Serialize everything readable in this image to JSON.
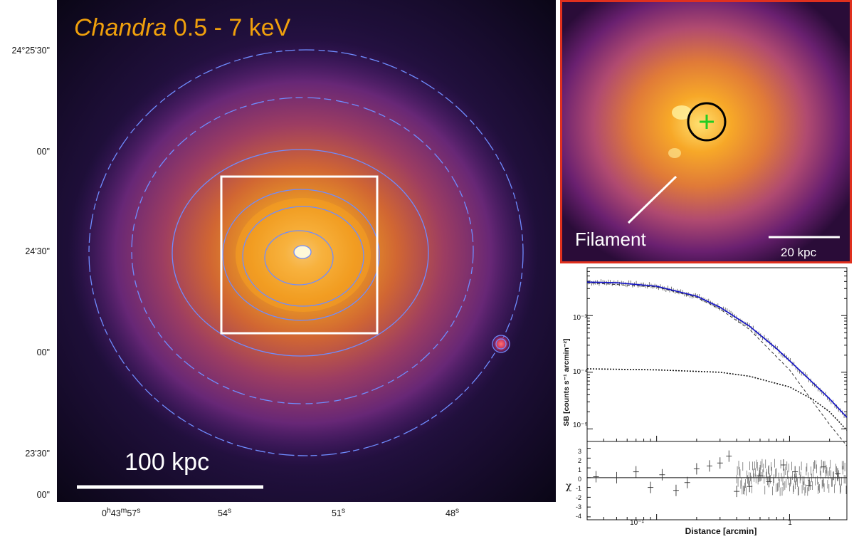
{
  "main_image": {
    "title_italic": "Chandra",
    "title_rest": " 0.5 - 7 keV",
    "scale_label": "100 kpc",
    "dec_ticks": [
      "24°25'30\"",
      "00\"",
      "24'30\"",
      "00\"",
      "23'30\"",
      "00\""
    ],
    "ra_ticks": [
      "0h43m57s",
      "54s",
      "51s",
      "48s"
    ],
    "ra_ticks_parts": [
      {
        "base": "0",
        "h": "h",
        "m_val": "43",
        "m": "m",
        "s_val": "57",
        "s": "s"
      },
      {
        "s_val": "54",
        "s": "s"
      },
      {
        "s_val": "51",
        "s": "s"
      },
      {
        "s_val": "48",
        "s": "s"
      }
    ]
  },
  "inset": {
    "filament_label": "Filament",
    "scale_label": "20 kpc"
  },
  "profile": {
    "ylabel": "SB [counts s⁻¹ arcmin⁻²]",
    "xlabel": "Distance [arcmin]",
    "resid_label": "χ",
    "y_ticks": [
      "10⁻³",
      "10⁻⁴",
      "10⁻⁵"
    ],
    "x_ticks": [
      "10⁻¹",
      "1"
    ],
    "resid_ticks": [
      "3",
      "2",
      "1",
      "0",
      "-1",
      "-2",
      "-3",
      "-4"
    ]
  },
  "colors": {
    "title": "#f0a00c",
    "contour": "#6f8cff",
    "inset_border": "#e0301e",
    "model_line": "#1010c8",
    "centroid": "#22cc22"
  },
  "chart_data": {
    "type": "line",
    "title": "",
    "xlabel": "Distance [arcmin]",
    "ylabel": "SB [counts s^-1 arcmin^-2]",
    "xscale": "log",
    "yscale": "log",
    "xlim": [
      0.03,
      2.7
    ],
    "ylim": [
      6e-06,
      0.007
    ],
    "series": [
      {
        "name": "model (blue)",
        "x": [
          0.03,
          0.05,
          0.1,
          0.2,
          0.3,
          0.5,
          0.8,
          1.0,
          1.5,
          2.0,
          2.7
        ],
        "values": [
          0.0039,
          0.0038,
          0.0033,
          0.0022,
          0.0014,
          0.00065,
          0.00026,
          0.00016,
          6.5e-05,
          3.4e-05,
          1.6e-05
        ]
      },
      {
        "name": "background component (dotted)",
        "x": [
          0.03,
          0.1,
          0.3,
          0.5,
          1.0,
          1.5,
          2.0,
          2.7
        ],
        "values": [
          0.000115,
          0.00011,
          0.0001,
          8.5e-05,
          5.5e-05,
          3.3e-05,
          2e-05,
          9.5e-06
        ]
      },
      {
        "name": "core component (dashed)",
        "x": [
          0.03,
          0.1,
          0.2,
          0.3,
          0.5,
          1.0,
          1.5,
          2.0,
          2.7
        ],
        "values": [
          0.0038,
          0.0032,
          0.0021,
          0.0013,
          0.00057,
          0.00011,
          3e-05,
          1.2e-05,
          5e-06
        ]
      }
    ],
    "residuals": {
      "ylabel": "χ",
      "ylim": [
        -4.3,
        3.7
      ],
      "x": [
        0.035,
        0.05,
        0.07,
        0.09,
        0.11,
        0.14,
        0.17,
        0.2,
        0.25,
        0.3,
        0.35,
        0.4,
        0.5,
        0.6,
        0.7,
        0.9,
        1.1,
        1.4,
        1.8,
        2.3
      ],
      "values": [
        0.1,
        0.0,
        0.6,
        -1.0,
        0.3,
        -1.3,
        -0.5,
        0.9,
        1.2,
        1.5,
        2.2,
        -1.4,
        -0.9,
        0.2,
        -0.4,
        1.3,
        0.6,
        -0.8,
        1.1,
        0.4
      ]
    }
  }
}
